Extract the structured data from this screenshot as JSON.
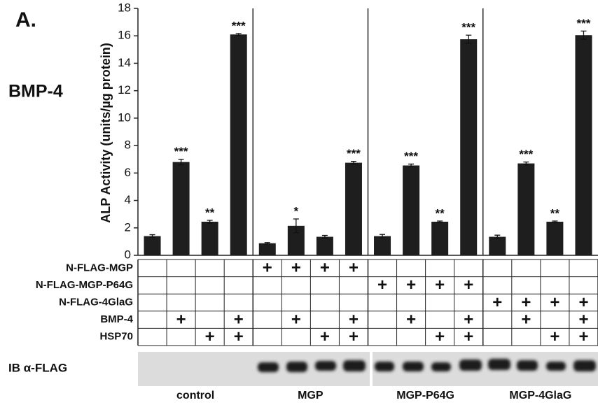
{
  "panel_label": "A.",
  "treatment": "BMP-4",
  "chart_data": {
    "type": "bar",
    "ylabel": "ALP Activity (units/µg protein)",
    "ylim": [
      0,
      18
    ],
    "yticks": [
      0,
      2,
      4,
      6,
      8,
      10,
      12,
      14,
      16,
      18
    ],
    "color": "#1e1e1e",
    "groups": [
      {
        "name": "control",
        "values": [
          1.4,
          6.8,
          2.45,
          16.1
        ],
        "errors": [
          0.1,
          0.2,
          0.1,
          0.07
        ],
        "significance": [
          null,
          "***",
          "**",
          "***"
        ]
      },
      {
        "name": "MGP",
        "values": [
          0.88,
          2.15,
          1.35,
          6.75
        ],
        "errors": [
          0.05,
          0.5,
          0.1,
          0.1
        ],
        "significance": [
          null,
          "*",
          null,
          "***"
        ]
      },
      {
        "name": "MGP-P64G",
        "values": [
          1.4,
          6.55,
          2.45,
          15.75
        ],
        "errors": [
          0.12,
          0.1,
          0.05,
          0.3
        ],
        "significance": [
          null,
          "***",
          "**",
          "***"
        ]
      },
      {
        "name": "MGP-4GlaG",
        "values": [
          1.35,
          6.7,
          2.45,
          16.05
        ],
        "errors": [
          0.12,
          0.1,
          0.05,
          0.3
        ],
        "significance": [
          null,
          "***",
          "**",
          "***"
        ]
      }
    ]
  },
  "table": {
    "rows": [
      {
        "label": "N-FLAG-MGP",
        "cells": [
          null,
          null,
          null,
          null,
          "+",
          "+",
          "+",
          "+",
          null,
          null,
          null,
          null,
          null,
          null,
          null,
          null
        ]
      },
      {
        "label": "N-FLAG-MGP-P64G",
        "cells": [
          null,
          null,
          null,
          null,
          null,
          null,
          null,
          null,
          "+",
          "+",
          "+",
          "+",
          null,
          null,
          null,
          null
        ]
      },
      {
        "label": "N-FLAG-4GlaG",
        "cells": [
          null,
          null,
          null,
          null,
          null,
          null,
          null,
          null,
          null,
          null,
          null,
          null,
          "+",
          "+",
          "+",
          "+"
        ]
      },
      {
        "label": "BMP-4",
        "cells": [
          null,
          "+",
          null,
          "+",
          null,
          "+",
          null,
          "+",
          null,
          "+",
          null,
          "+",
          null,
          "+",
          null,
          "+"
        ]
      },
      {
        "label": "HSP70",
        "cells": [
          null,
          null,
          "+",
          "+",
          null,
          null,
          "+",
          "+",
          null,
          null,
          "+",
          "+",
          null,
          null,
          "+",
          "+"
        ]
      }
    ]
  },
  "blot": {
    "label": "IB α-FLAG"
  }
}
